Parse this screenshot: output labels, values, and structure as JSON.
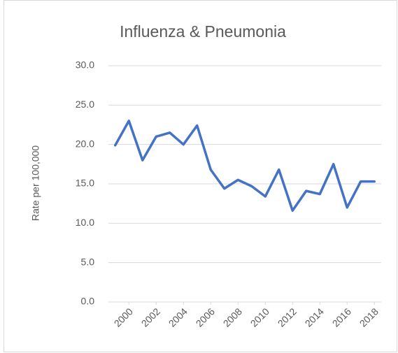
{
  "chart_data": {
    "type": "line",
    "title": "Influenza & Pneumonia",
    "y_label": "Rate per 100,000",
    "x": [
      1999,
      2000,
      2001,
      2002,
      2003,
      2004,
      2005,
      2006,
      2007,
      2008,
      2009,
      2010,
      2011,
      2012,
      2013,
      2014,
      2015,
      2016,
      2017,
      2018
    ],
    "series": [
      {
        "name": "Rate per 100,000",
        "color": "#4472c4",
        "values": [
          19.9,
          23.0,
          18.0,
          21.0,
          21.5,
          20.0,
          22.4,
          16.8,
          14.4,
          15.5,
          14.7,
          13.4,
          16.8,
          11.6,
          14.1,
          13.7,
          17.5,
          12.0,
          15.3,
          15.3
        ]
      }
    ],
    "xlim": [
      1998.5,
      2018.5
    ],
    "xticks": [
      2000,
      2002,
      2004,
      2006,
      2008,
      2010,
      2012,
      2014,
      2016,
      2018
    ],
    "ylim": [
      0,
      30
    ],
    "yticks": [
      {
        "value": 0,
        "label": "0.0"
      },
      {
        "value": 5,
        "label": "5.0"
      },
      {
        "value": 10,
        "label": "10.0"
      },
      {
        "value": 15,
        "label": "15.0"
      },
      {
        "value": 20,
        "label": "20.0"
      },
      {
        "value": 25,
        "label": "25.0"
      },
      {
        "value": 30,
        "label": "30.0"
      }
    ],
    "grid": true
  }
}
